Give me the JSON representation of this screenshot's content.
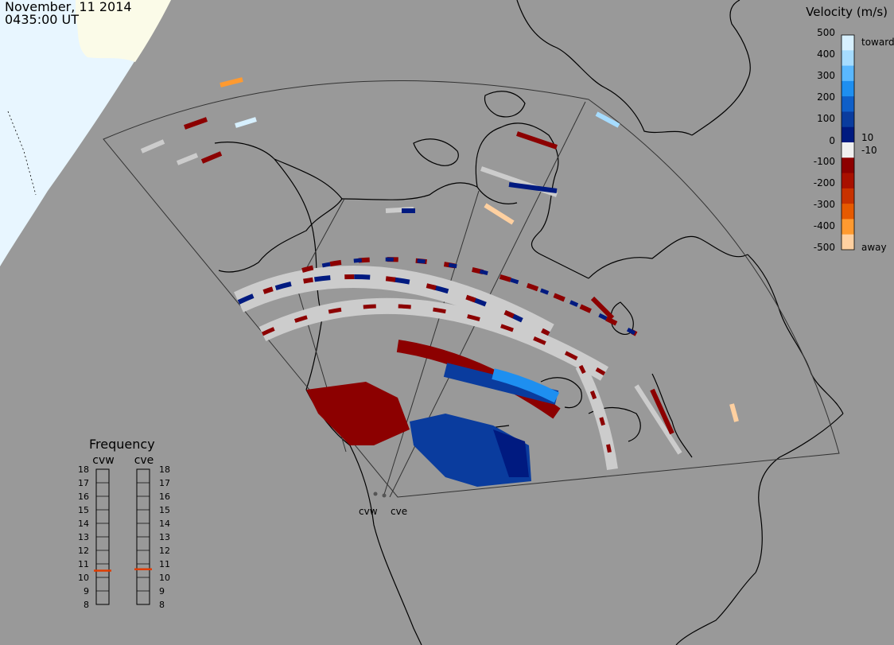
{
  "header": {
    "date": "November, 11 2014",
    "time": "0435:00 UT"
  },
  "velocity_scale": {
    "title": "Velocity (m/s)",
    "ticks": [
      "500",
      "400",
      "300",
      "200",
      "100",
      "10",
      "0",
      "-10",
      "-100",
      "-200",
      "-300",
      "-400",
      "-500"
    ],
    "toward_label": "toward",
    "away_label": "away",
    "colors": [
      "#d7f0ff",
      "#a6dcff",
      "#5ab8ff",
      "#1e8ff0",
      "#0f5fc8",
      "#0a3c9e",
      "#001a80",
      "#f0f0f0",
      "#8c0000",
      "#a81000",
      "#c83200",
      "#e65a00",
      "#ff9a30",
      "#ffd0a0"
    ]
  },
  "frequency_panel": {
    "title": "Frequency",
    "radars": [
      {
        "name": "cvw",
        "selected_mhz": 10.5
      },
      {
        "name": "cve",
        "selected_mhz": 10.6
      }
    ],
    "ticks": [
      "18",
      "17",
      "16",
      "15",
      "14",
      "13",
      "12",
      "11",
      "10",
      "9",
      "8"
    ],
    "min": 8,
    "max": 18,
    "marker_color": "#e03c00"
  },
  "radar_sites": [
    {
      "name": "cvw"
    },
    {
      "name": "cve"
    }
  ],
  "colors": {
    "background": "#999999",
    "land_outline": "#000000",
    "daylight_region": "#e6f4ff",
    "low_velocity": "#cccccc"
  }
}
